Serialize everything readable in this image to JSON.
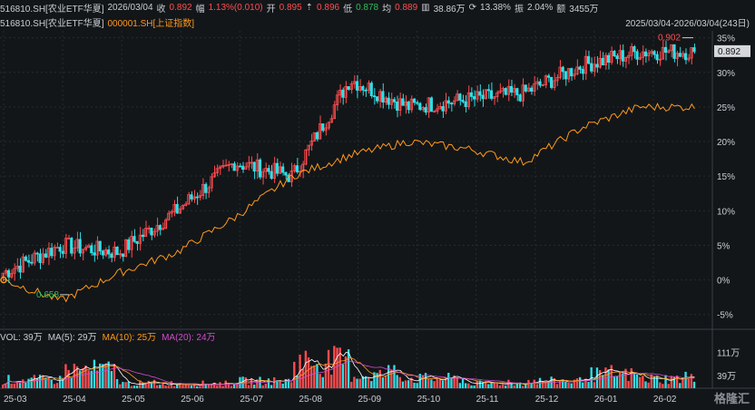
{
  "header": {
    "code_name": "516810.SH[农业ETF华夏]",
    "date": "2026/03/04",
    "close_label": "收",
    "close": "0.892",
    "change_label": "幅",
    "change": "1.13%(0.010)",
    "open_label": "开",
    "open": "0.895",
    "high_icon": "high-arrow-icon",
    "high": "0.896",
    "low_label": "低",
    "low": "0.878",
    "avg_label": "均",
    "avg": "0.889",
    "volume_icon": "volume-icon",
    "volume": "38.86万",
    "turnover_icon": "turnover-icon",
    "turnover": "13.38%",
    "amplitude_label": "振",
    "amplitude": "2.04%",
    "amount_label": "额",
    "amount": "3455万"
  },
  "legend": {
    "main_series": "516810.SH[农业ETF华夏]",
    "compare_series": "000001.SH[上证指数]",
    "range": "2025/03/04-2026/03/04(243日)"
  },
  "volume_legend": {
    "vol": "VOL: 39万",
    "ma5": "MA(5): 29万",
    "ma10": "MA(10): 25万",
    "ma20": "MA(20): 24万"
  },
  "watermark": "格隆汇",
  "colors": {
    "background": "#131619",
    "up": "#ff4d4f",
    "down": "#2ee0e8",
    "compare_line": "#ff9a1a",
    "ma5": "#ffffff",
    "ma10": "#ff9a1a",
    "ma20": "#d14bd1",
    "last_price_box": "#d6d8dc"
  },
  "chart_data": [
    {
      "type": "line",
      "title": "",
      "y_axis_ticks": [
        "35%",
        "30%",
        "25%",
        "20%",
        "15%",
        "10%",
        "5%",
        "0%",
        "-5%"
      ],
      "ylim_pct": [
        -7,
        36
      ],
      "x_ticks": [
        "25-03",
        "25-04",
        "25-05",
        "25-06",
        "25-07",
        "25-08",
        "25-09",
        "25-10",
        "25-11",
        "25-12",
        "26-01",
        "26-02"
      ],
      "annotations": {
        "max_price": "0.902",
        "min_price": "0.658",
        "last_price": "0.892"
      },
      "grid": true,
      "series": [
        {
          "name": "516810.SH[农业ETF华夏]",
          "style": "candlestick",
          "close_pct_by_month": [
            1,
            5,
            4,
            10,
            17,
            15,
            29,
            25,
            26,
            27,
            31,
            33
          ],
          "high_pct_by_month": [
            3,
            11,
            6,
            12,
            18,
            28,
            30,
            29,
            29,
            30,
            35,
            36
          ],
          "low_pct_by_month": [
            -1,
            -6,
            3,
            6,
            13,
            14,
            23,
            21,
            23,
            24,
            26,
            27
          ]
        },
        {
          "name": "000001.SH[上证指数]",
          "style": "line",
          "values_pct_by_month": [
            0,
            -3,
            1,
            4,
            9,
            15,
            18,
            20,
            19,
            17,
            22,
            25
          ]
        }
      ]
    },
    {
      "type": "bar",
      "title": "VOL",
      "y_axis_ticks": [
        "111万",
        "39万"
      ],
      "ylim": [
        0,
        140
      ],
      "unit": "万",
      "volume_by_month": [
        35,
        75,
        20,
        20,
        30,
        110,
        55,
        40,
        20,
        30,
        55,
        39
      ],
      "ma_series": [
        "MA(5)",
        "MA(10)",
        "MA(20)"
      ]
    }
  ]
}
